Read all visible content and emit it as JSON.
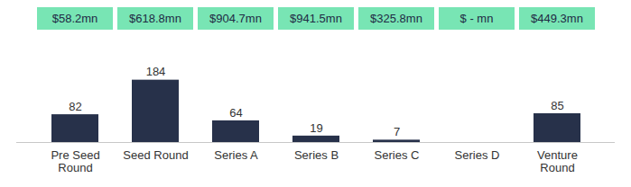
{
  "chart_data": {
    "type": "bar",
    "categories": [
      "Pre Seed\nRound",
      "Seed Round",
      "Series A",
      "Series B",
      "Series C",
      "Series D",
      "Venture\nRound"
    ],
    "values": [
      82,
      184,
      64,
      19,
      7,
      null,
      85
    ],
    "color": "#27314a",
    "data_labels": true,
    "tick_labels": "x",
    "ylim": [
      0,
      260
    ],
    "annotations": [
      "$58.2mn",
      "$618.8mn",
      "$904.7mn",
      "$941.5mn",
      "$325.8mn",
      "$ - mn",
      "$449.3mn"
    ]
  }
}
